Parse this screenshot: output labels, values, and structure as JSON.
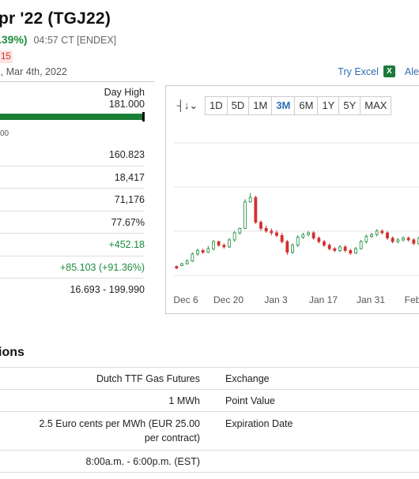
{
  "header": {
    "title": "pr '22 (TGJ22)",
    "change_pct": ".39%)",
    "time": "04:57 CT [ENDEX]",
    "badge": "15",
    "date": "i, Mar 4th, 2022",
    "try_excel": "Try Excel",
    "alerts": "Ale"
  },
  "day_range": {
    "label": "Day High",
    "value": "181.000",
    "tiny_label": "00"
  },
  "stats": [
    "160.823",
    "18,417",
    "71,176",
    "77.67%",
    "+452.18",
    "+85.103 (+91.36%)",
    "16.693 - 199.990"
  ],
  "chart": {
    "timeframes": [
      "1D",
      "5D",
      "1M",
      "3M",
      "6M",
      "1Y",
      "5Y",
      "MAX"
    ],
    "active": "3M",
    "icon": "candlestick-type-icon"
  },
  "chart_data": {
    "type": "candlestick",
    "x_ticks": [
      "Dec 6",
      "Dec 20",
      "Jan 3",
      "Jan 17",
      "Jan 31",
      "Feb"
    ],
    "up_color": "#1c8c3c",
    "down_color": "#d32f2f",
    "candles": [
      {
        "o": 0.12,
        "c": 0.1,
        "h": 0.13,
        "l": 0.09
      },
      {
        "o": 0.13,
        "c": 0.15,
        "h": 0.16,
        "l": 0.12
      },
      {
        "o": 0.15,
        "c": 0.18,
        "h": 0.2,
        "l": 0.14
      },
      {
        "o": 0.18,
        "c": 0.26,
        "h": 0.28,
        "l": 0.17
      },
      {
        "o": 0.26,
        "c": 0.3,
        "h": 0.32,
        "l": 0.24
      },
      {
        "o": 0.3,
        "c": 0.28,
        "h": 0.32,
        "l": 0.26
      },
      {
        "o": 0.28,
        "c": 0.32,
        "h": 0.35,
        "l": 0.27
      },
      {
        "o": 0.32,
        "c": 0.4,
        "h": 0.42,
        "l": 0.3
      },
      {
        "o": 0.4,
        "c": 0.36,
        "h": 0.41,
        "l": 0.34
      },
      {
        "o": 0.36,
        "c": 0.34,
        "h": 0.38,
        "l": 0.32
      },
      {
        "o": 0.34,
        "c": 0.42,
        "h": 0.44,
        "l": 0.33
      },
      {
        "o": 0.42,
        "c": 0.5,
        "h": 0.52,
        "l": 0.4
      },
      {
        "o": 0.5,
        "c": 0.55,
        "h": 0.56,
        "l": 0.48
      },
      {
        "o": 0.55,
        "c": 0.85,
        "h": 0.88,
        "l": 0.54
      },
      {
        "o": 0.85,
        "c": 0.9,
        "h": 0.95,
        "l": 0.84
      },
      {
        "o": 0.9,
        "c": 0.62,
        "h": 0.92,
        "l": 0.6
      },
      {
        "o": 0.62,
        "c": 0.55,
        "h": 0.64,
        "l": 0.52
      },
      {
        "o": 0.55,
        "c": 0.52,
        "h": 0.58,
        "l": 0.5
      },
      {
        "o": 0.52,
        "c": 0.5,
        "h": 0.55,
        "l": 0.47
      },
      {
        "o": 0.5,
        "c": 0.47,
        "h": 0.53,
        "l": 0.45
      },
      {
        "o": 0.47,
        "c": 0.4,
        "h": 0.5,
        "l": 0.38
      },
      {
        "o": 0.4,
        "c": 0.28,
        "h": 0.42,
        "l": 0.25
      },
      {
        "o": 0.28,
        "c": 0.36,
        "h": 0.38,
        "l": 0.26
      },
      {
        "o": 0.36,
        "c": 0.45,
        "h": 0.47,
        "l": 0.34
      },
      {
        "o": 0.45,
        "c": 0.48,
        "h": 0.5,
        "l": 0.43
      },
      {
        "o": 0.48,
        "c": 0.5,
        "h": 0.52,
        "l": 0.46
      },
      {
        "o": 0.5,
        "c": 0.44,
        "h": 0.52,
        "l": 0.42
      },
      {
        "o": 0.44,
        "c": 0.4,
        "h": 0.46,
        "l": 0.38
      },
      {
        "o": 0.4,
        "c": 0.36,
        "h": 0.42,
        "l": 0.34
      },
      {
        "o": 0.36,
        "c": 0.32,
        "h": 0.38,
        "l": 0.3
      },
      {
        "o": 0.32,
        "c": 0.3,
        "h": 0.34,
        "l": 0.28
      },
      {
        "o": 0.3,
        "c": 0.34,
        "h": 0.36,
        "l": 0.28
      },
      {
        "o": 0.34,
        "c": 0.3,
        "h": 0.36,
        "l": 0.28
      },
      {
        "o": 0.3,
        "c": 0.27,
        "h": 0.32,
        "l": 0.25
      },
      {
        "o": 0.27,
        "c": 0.32,
        "h": 0.34,
        "l": 0.26
      },
      {
        "o": 0.32,
        "c": 0.4,
        "h": 0.42,
        "l": 0.31
      },
      {
        "o": 0.4,
        "c": 0.46,
        "h": 0.48,
        "l": 0.38
      },
      {
        "o": 0.46,
        "c": 0.48,
        "h": 0.5,
        "l": 0.44
      },
      {
        "o": 0.48,
        "c": 0.52,
        "h": 0.54,
        "l": 0.46
      },
      {
        "o": 0.52,
        "c": 0.5,
        "h": 0.54,
        "l": 0.48
      },
      {
        "o": 0.5,
        "c": 0.44,
        "h": 0.52,
        "l": 0.42
      },
      {
        "o": 0.44,
        "c": 0.4,
        "h": 0.46,
        "l": 0.38
      },
      {
        "o": 0.4,
        "c": 0.42,
        "h": 0.44,
        "l": 0.38
      },
      {
        "o": 0.42,
        "c": 0.44,
        "h": 0.46,
        "l": 0.4
      },
      {
        "o": 0.44,
        "c": 0.42,
        "h": 0.46,
        "l": 0.4
      },
      {
        "o": 0.42,
        "c": 0.38,
        "h": 0.44,
        "l": 0.36
      },
      {
        "o": 0.38,
        "c": 0.44,
        "h": 0.46,
        "l": 0.36
      },
      {
        "o": 0.44,
        "c": 0.48,
        "h": 0.5,
        "l": 0.42
      }
    ]
  },
  "specs": {
    "title": "ions",
    "rows": [
      {
        "value": "Dutch TTF Gas Futures",
        "key": "Exchange"
      },
      {
        "value": "1 MWh",
        "key": "Point Value"
      },
      {
        "value_lines": [
          "2.5 Euro cents per MWh (EUR 25.00",
          "per contract)"
        ],
        "key": "Expiration Date"
      },
      {
        "value": "8:00a.m. - 6:00p.m. (EST)",
        "key": ""
      }
    ]
  }
}
